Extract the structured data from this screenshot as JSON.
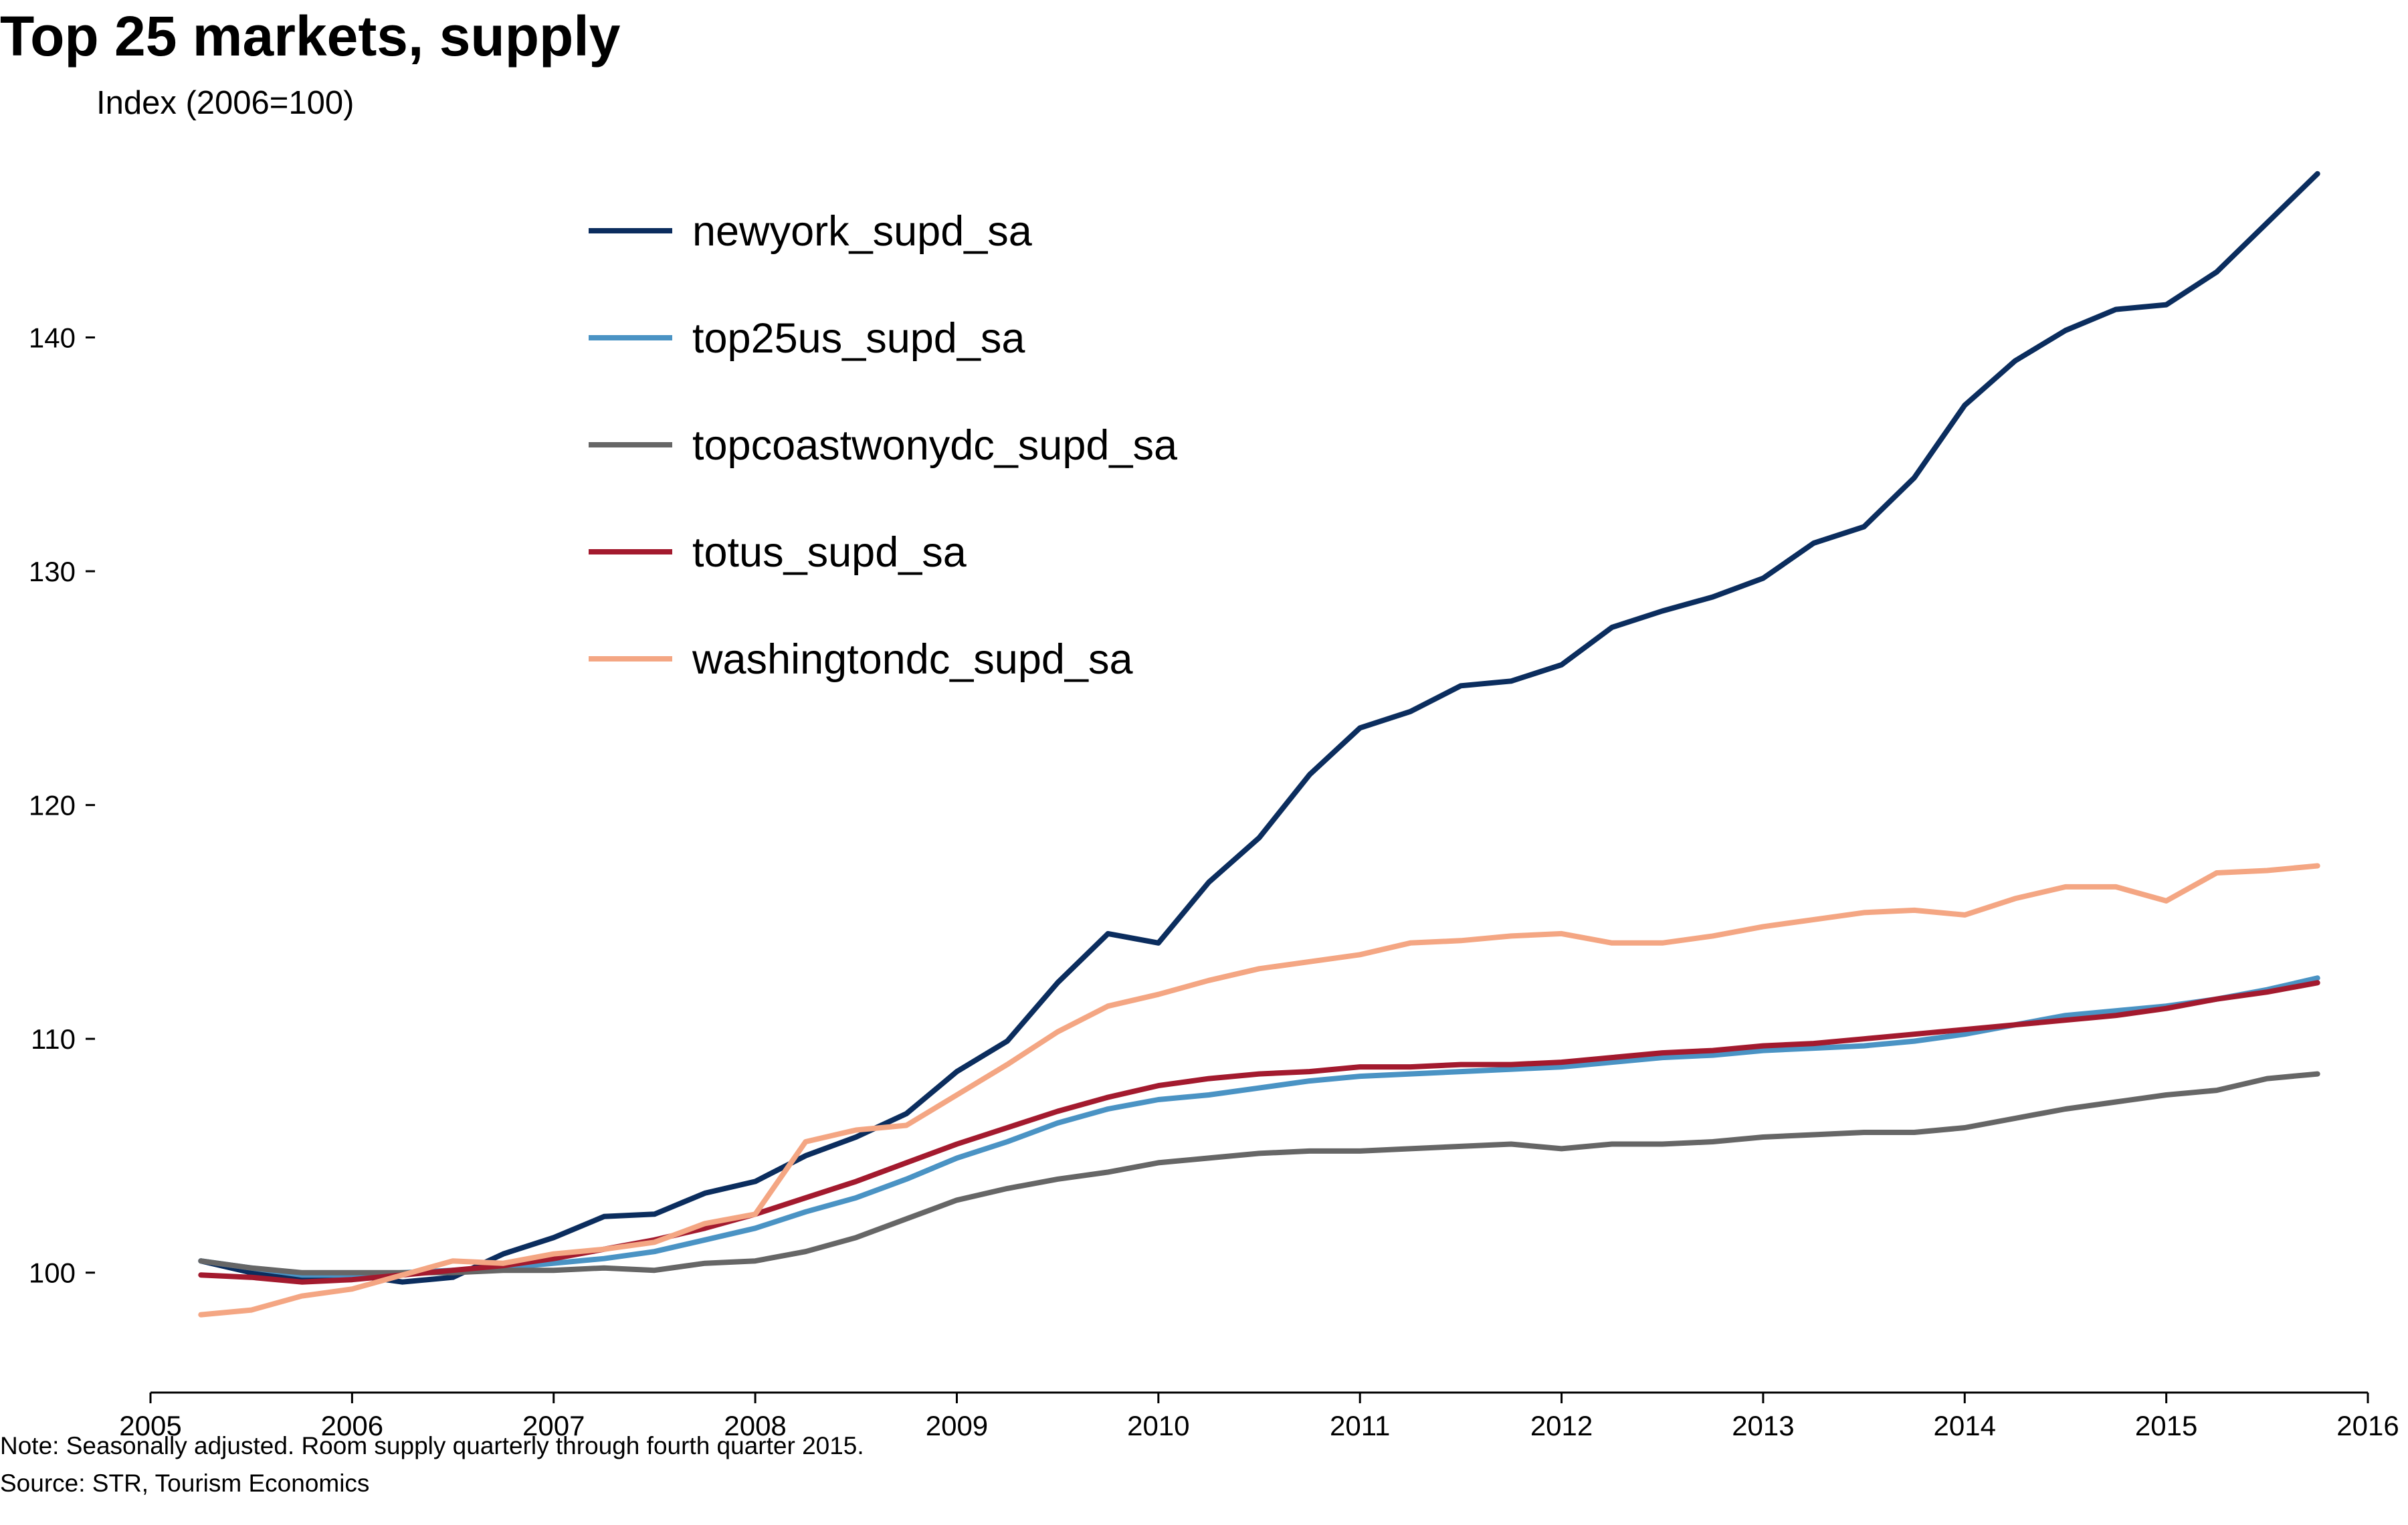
{
  "chart_data": {
    "type": "line",
    "title": "Top 25 markets, supply",
    "subtitle": "Index (2006=100)",
    "xlabel": "",
    "ylabel": "",
    "xlim": [
      2005,
      2016
    ],
    "ylim": [
      95.5,
      151
    ],
    "x_ticks": [
      "2005",
      "2006",
      "2007",
      "2008",
      "2009",
      "2010",
      "2011",
      "2012",
      "2013",
      "2014",
      "2015",
      "2016"
    ],
    "y_ticks": [
      "100",
      "110",
      "120",
      "130",
      "140"
    ],
    "grid": false,
    "legend_position": "top-center",
    "x": [
      2005.25,
      2005.5,
      2005.75,
      2006.0,
      2006.25,
      2006.5,
      2006.75,
      2007.0,
      2007.25,
      2007.5,
      2007.75,
      2008.0,
      2008.25,
      2008.5,
      2008.75,
      2009.0,
      2009.25,
      2009.5,
      2009.75,
      2010.0,
      2010.25,
      2010.5,
      2010.75,
      2011.0,
      2011.25,
      2011.5,
      2011.75,
      2012.0,
      2012.25,
      2012.5,
      2012.75,
      2013.0,
      2013.25,
      2013.5,
      2013.75,
      2014.0,
      2014.25,
      2014.5,
      2014.75,
      2015.0,
      2015.25,
      2015.5,
      2015.75
    ],
    "series": [
      {
        "name": "newyork_supd_sa",
        "color": "#0b2d5e",
        "values": [
          100.5,
          100.0,
          99.8,
          99.9,
          99.6,
          99.8,
          100.8,
          101.5,
          102.4,
          102.5,
          103.4,
          103.9,
          105.0,
          105.8,
          106.8,
          108.6,
          109.9,
          112.4,
          114.5,
          114.1,
          116.7,
          118.6,
          121.3,
          123.3,
          124.0,
          125.1,
          125.3,
          126.0,
          127.6,
          128.3,
          128.9,
          129.7,
          131.2,
          131.9,
          134.0,
          137.1,
          139.0,
          140.3,
          141.2,
          141.4,
          142.8,
          144.9,
          147.0
        ]
      },
      {
        "name": "top25us_supd_sa",
        "color": "#4a93c4",
        "values": [
          100.5,
          100.2,
          99.9,
          99.9,
          100.0,
          100.1,
          100.2,
          100.4,
          100.6,
          100.9,
          101.4,
          101.9,
          102.6,
          103.2,
          104.0,
          104.9,
          105.6,
          106.4,
          107.0,
          107.4,
          107.6,
          107.9,
          108.2,
          108.4,
          108.5,
          108.6,
          108.7,
          108.8,
          109.0,
          109.2,
          109.3,
          109.5,
          109.6,
          109.7,
          109.9,
          110.2,
          110.6,
          111.0,
          111.2,
          111.4,
          111.7,
          112.1,
          112.6
        ]
      },
      {
        "name": "topcoastwonydc_supd_sa",
        "color": "#666666",
        "values": [
          100.5,
          100.2,
          100.0,
          100.0,
          100.0,
          100.0,
          100.1,
          100.1,
          100.2,
          100.1,
          100.4,
          100.5,
          100.9,
          101.5,
          102.3,
          103.1,
          103.6,
          104.0,
          104.3,
          104.7,
          104.9,
          105.1,
          105.2,
          105.2,
          105.3,
          105.4,
          105.5,
          105.3,
          105.5,
          105.5,
          105.6,
          105.8,
          105.9,
          106.0,
          106.0,
          106.2,
          106.6,
          107.0,
          107.3,
          107.6,
          107.8,
          108.3,
          108.5
        ]
      },
      {
        "name": "totus_supd_sa",
        "color": "#a31a2e",
        "values": [
          99.9,
          99.8,
          99.6,
          99.7,
          99.9,
          100.1,
          100.3,
          100.6,
          101.0,
          101.4,
          101.9,
          102.5,
          103.2,
          103.9,
          104.7,
          105.5,
          106.2,
          106.9,
          107.5,
          108.0,
          108.3,
          108.5,
          108.6,
          108.8,
          108.8,
          108.9,
          108.9,
          109.0,
          109.2,
          109.4,
          109.5,
          109.7,
          109.8,
          110.0,
          110.2,
          110.4,
          110.6,
          110.8,
          111.0,
          111.3,
          111.7,
          112.0,
          112.4
        ]
      },
      {
        "name": "washingtondc_supd_sa",
        "color": "#f4a683",
        "values": [
          98.2,
          98.4,
          99.0,
          99.3,
          99.9,
          100.5,
          100.4,
          100.8,
          101.0,
          101.3,
          102.1,
          102.5,
          105.6,
          106.1,
          106.3,
          107.6,
          108.9,
          110.3,
          111.4,
          111.9,
          112.5,
          113.0,
          113.3,
          113.6,
          114.1,
          114.2,
          114.4,
          114.5,
          114.1,
          114.1,
          114.4,
          114.8,
          115.1,
          115.4,
          115.5,
          115.3,
          116.0,
          116.5,
          116.5,
          115.9,
          117.1,
          117.2,
          117.4
        ]
      }
    ],
    "note": "Note: Seasonally adjusted. Room supply quarterly through fourth quarter 2015.",
    "source": "Source: STR, Tourism Economics"
  }
}
